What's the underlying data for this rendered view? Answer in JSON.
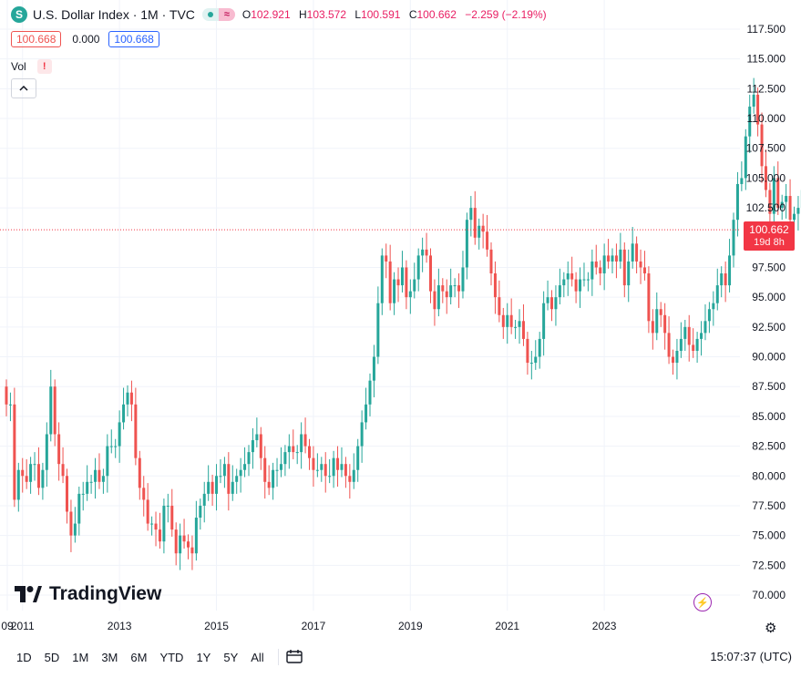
{
  "header": {
    "symbol_icon": "S",
    "title": "U.S. Dollar Index · 1M · TVC",
    "status_icon": "market-open-dot",
    "approx_icon": "≈",
    "o_label": "O",
    "o_value": "102.921",
    "h_label": "H",
    "h_value": "103.572",
    "l_label": "L",
    "l_value": "100.591",
    "c_label": "C",
    "c_value": "100.662",
    "change": "−2.259 (−2.19%)"
  },
  "row2": {
    "price": "100.668",
    "zero": "0.000",
    "price2": "100.668"
  },
  "vol": {
    "label": "Vol",
    "warn": "!"
  },
  "collapse_icon": "^",
  "logo": {
    "text": "TradingView"
  },
  "price_tag": {
    "value": "100.662",
    "countdown": "19d 8h"
  },
  "toolbar": {
    "ranges": [
      "1D",
      "5D",
      "1M",
      "3M",
      "6M",
      "YTD",
      "1Y",
      "5Y",
      "All"
    ],
    "calendar_icon": "calendar-icon",
    "time": "15:07:37 (UTC)"
  },
  "colors": {
    "up": "#26a69a",
    "down": "#ef5350",
    "price_line": "#f23645"
  },
  "chart_data": {
    "type": "candlestick",
    "title": "U.S. Dollar Index · 1M · TVC",
    "x_ticks": [
      "09",
      "2011",
      "2013",
      "2015",
      "2017",
      "2019",
      "2021",
      "2023"
    ],
    "y_ticks": [
      "117.500",
      "115.000",
      "112.500",
      "110.000",
      "107.500",
      "105.000",
      "102.500",
      "97.500",
      "95.000",
      "92.500",
      "90.000",
      "87.500",
      "85.000",
      "82.500",
      "80.000",
      "77.500",
      "75.000",
      "72.500",
      "70.000"
    ],
    "ylim": [
      70.0,
      117.5
    ],
    "x_start": "2009-09",
    "last_price": 100.662,
    "grid": true,
    "closes": [
      86.0,
      86.0,
      78.0,
      80.5,
      80.0,
      79.5,
      81.0,
      81.0,
      79.0,
      80.5,
      83.5,
      87.5,
      83.5,
      81.0,
      80.0,
      77.0,
      75.0,
      76.0,
      78.5,
      78.5,
      79.5,
      79.5,
      80.5,
      79.5,
      80.0,
      82.5,
      82.5,
      82.5,
      84.5,
      86.0,
      87.0,
      86.0,
      81.5,
      79.0,
      78.0,
      76.0,
      76.0,
      75.5,
      74.5,
      77.5,
      77.5,
      75.5,
      73.5,
      75.0,
      74.5,
      74.0,
      73.5,
      76.5,
      77.5,
      78.5,
      79.5,
      78.5,
      80.0,
      80.0,
      81.0,
      78.5,
      79.5,
      80.0,
      80.5,
      81.0,
      82.0,
      83.0,
      83.5,
      81.5,
      79.5,
      79.0,
      80.5,
      80.5,
      81.0,
      82.0,
      82.5,
      82.0,
      82.0,
      83.5,
      82.5,
      81.5,
      80.5,
      80.5,
      81.0,
      80.0,
      80.0,
      81.5,
      80.5,
      81.0,
      80.0,
      79.5,
      80.5,
      82.5,
      84.5,
      86.0,
      88.0,
      90.0,
      94.5,
      98.5,
      98.0,
      94.5,
      96.5,
      96.0,
      97.5,
      95.0,
      95.5,
      96.5,
      98.5,
      99.0,
      98.5,
      95.5,
      94.0,
      96.0,
      95.5,
      95.0,
      96.0,
      96.0,
      95.5,
      97.5,
      101.5,
      102.5,
      100.0,
      101.0,
      100.5,
      99.0,
      97.0,
      95.0,
      93.5,
      92.5,
      93.5,
      92.5,
      92.5,
      93.0,
      91.5,
      89.5,
      89.5,
      90.0,
      91.5,
      94.5,
      95.0,
      94.0,
      95.0,
      96.0,
      96.5,
      97.0,
      96.5,
      95.5,
      96.5,
      96.5,
      96.5,
      98.0,
      97.5,
      97.0,
      98.5,
      98.0,
      98.5,
      98.0,
      99.0,
      96.0,
      98.0,
      99.5,
      98.0,
      97.5,
      97.0,
      93.0,
      92.0,
      94.0,
      93.5,
      92.0,
      90.0,
      89.5,
      90.5,
      91.5,
      92.5,
      91.0,
      90.5,
      91.5,
      92.0,
      93.0,
      94.0,
      94.5,
      96.0,
      97.0,
      96.0,
      98.5,
      101.5,
      104.5,
      105.0,
      108.5,
      111.0,
      112.0,
      109.5,
      106.0,
      104.0,
      102.0,
      105.0,
      102.5,
      103.0,
      103.5,
      101.5,
      102.0,
      102.5,
      104.0,
      101.0,
      101.0,
      104.5,
      103.5,
      103.0,
      101.5,
      102.0,
      102.921,
      100.662
    ],
    "notes": "approximate monthly closes read off the chart"
  }
}
